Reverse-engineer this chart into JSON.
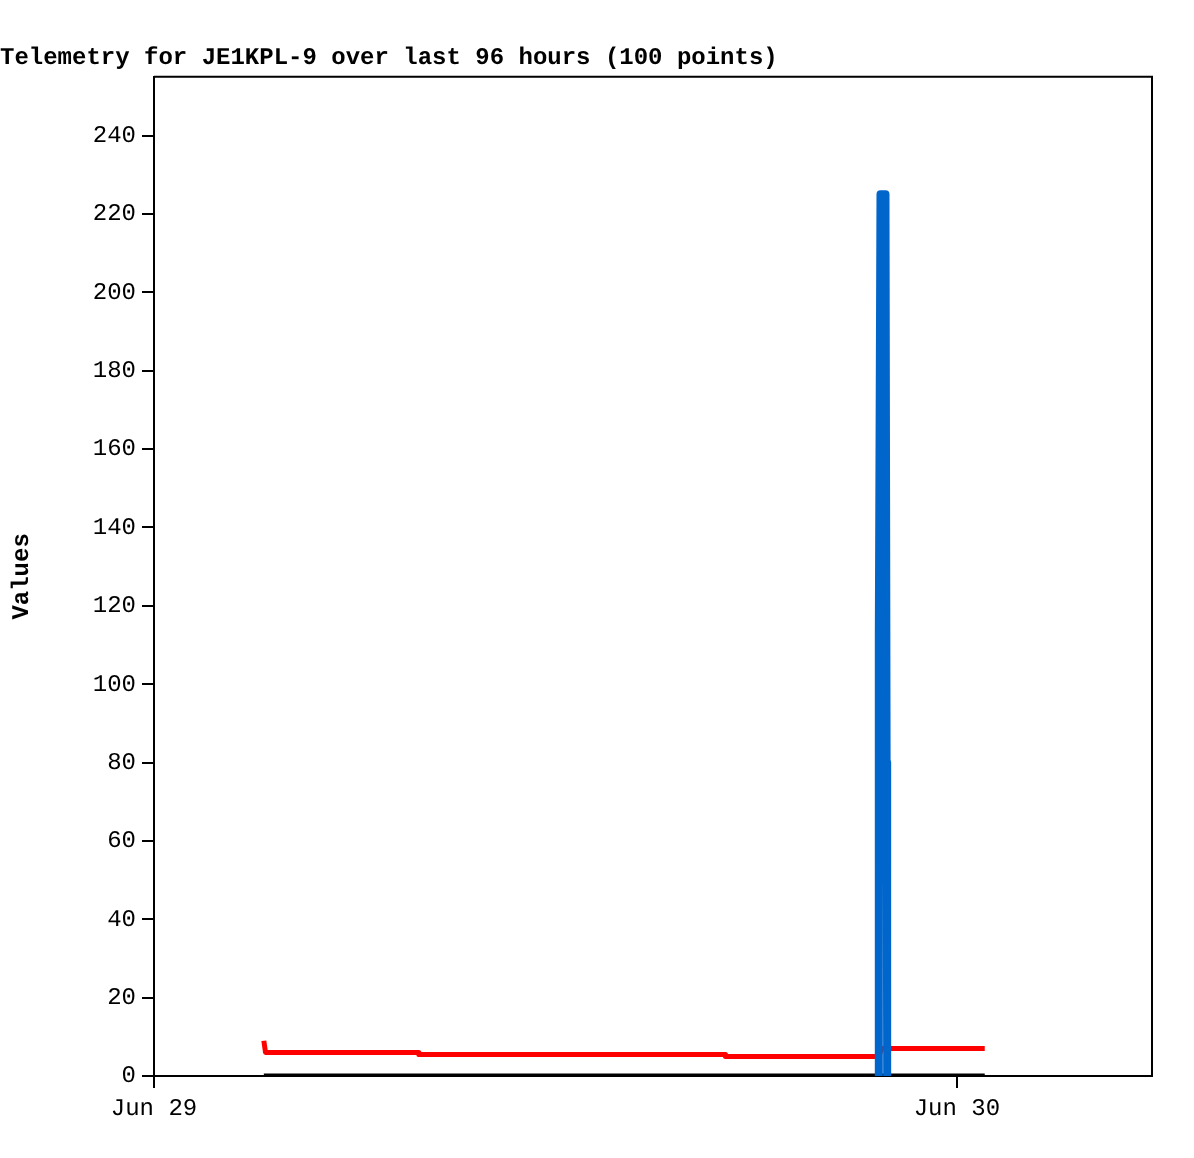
{
  "chart_data": {
    "type": "line",
    "title": "Telemetry for JE1KPL-9 over last 96 hours (100 points)",
    "ylabel": "Values",
    "xlim": [
      "--06-29T00:00",
      "--06-30T05:50"
    ],
    "xticks": [
      {
        "value": "--06-29T00:00",
        "label": "Jun 29"
      },
      {
        "value": "--06-30T00:00",
        "label": "Jun 30"
      }
    ],
    "ylim": [
      0,
      255
    ],
    "yticks": [
      0,
      20,
      40,
      60,
      80,
      100,
      120,
      140,
      160,
      180,
      200,
      220,
      240
    ],
    "grid": false,
    "legend": false,
    "marker": "none",
    "line_style": "solid",
    "series": [
      {
        "color": "#0066cc",
        "x": [
          "--06-29T21:39",
          "--06-29T21:40",
          "--06-29T21:43",
          "--06-29T21:52",
          "--06-29T21:54",
          "--06-29T21:55"
        ],
        "values": [
          0,
          112,
          225,
          225,
          80,
          0
        ]
      },
      {
        "color": "#ff0000",
        "x": [
          "--06-29T03:17",
          "--06-29T03:20",
          "--06-29T07:54",
          "--06-29T07:55",
          "--06-29T17:04",
          "--06-29T17:05",
          "--06-29T21:40",
          "--06-29T21:45",
          "--06-30T00:50"
        ],
        "values": [
          9,
          6,
          6,
          5.5,
          5.5,
          5,
          5,
          7,
          7
        ]
      },
      {
        "color": "#000000",
        "x": [
          "--06-29T03:17",
          "--06-30T00:50"
        ],
        "values": [
          0,
          0
        ]
      }
    ]
  }
}
